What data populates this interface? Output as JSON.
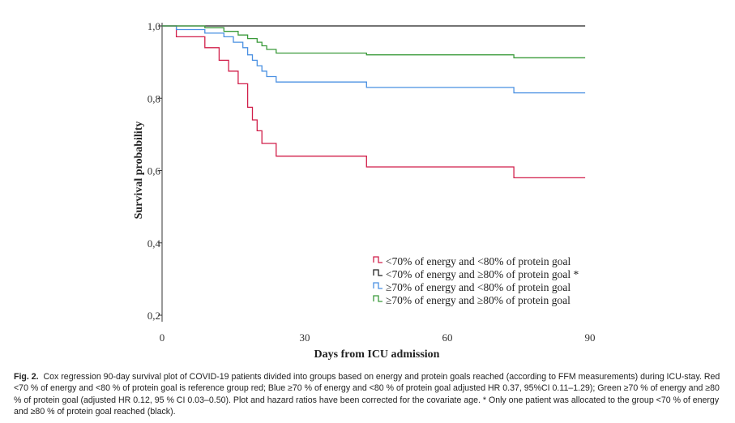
{
  "chart_data": {
    "type": "line",
    "subtype": "kaplan-meier-step",
    "xlabel": "Days from ICU admission",
    "ylabel": "Survival probability",
    "xlim": [
      0,
      90
    ],
    "ylim": [
      0.2,
      1.0
    ],
    "xticks": [
      {
        "value": 0,
        "label": "0"
      },
      {
        "value": 30,
        "label": "30"
      },
      {
        "value": 60,
        "label": "60"
      },
      {
        "value": 90,
        "label": "90"
      }
    ],
    "yticks": [
      {
        "value": 0.2,
        "label": "0,2"
      },
      {
        "value": 0.4,
        "label": "0,4"
      },
      {
        "value": 0.6,
        "label": "0,6"
      },
      {
        "value": 0.8,
        "label": "0,8"
      },
      {
        "value": 1.0,
        "label": "1,0"
      }
    ],
    "grid": false,
    "legend_position": "bottom-right",
    "series": [
      {
        "name": "<70% of energy and <80% of protein goal",
        "color": "#d11f4a",
        "points": [
          [
            0,
            1.0
          ],
          [
            3,
            1.0
          ],
          [
            3,
            0.97
          ],
          [
            9,
            0.97
          ],
          [
            9,
            0.94
          ],
          [
            12,
            0.94
          ],
          [
            12,
            0.905
          ],
          [
            14,
            0.905
          ],
          [
            14,
            0.875
          ],
          [
            16,
            0.875
          ],
          [
            16,
            0.84
          ],
          [
            18,
            0.84
          ],
          [
            18,
            0.775
          ],
          [
            19,
            0.775
          ],
          [
            19,
            0.74
          ],
          [
            20,
            0.74
          ],
          [
            20,
            0.71
          ],
          [
            21,
            0.71
          ],
          [
            21,
            0.675
          ],
          [
            24,
            0.675
          ],
          [
            24,
            0.64
          ],
          [
            43,
            0.64
          ],
          [
            43,
            0.61
          ],
          [
            74,
            0.61
          ],
          [
            74,
            0.58
          ],
          [
            89,
            0.58
          ]
        ]
      },
      {
        "name": "<70% of energy and ≥80% of protein goal *",
        "color": "#222222",
        "points": [
          [
            0,
            1.0
          ],
          [
            89,
            1.0
          ]
        ]
      },
      {
        "name": "≥70% of energy and <80% of protein goal",
        "color": "#4a90e2",
        "points": [
          [
            0,
            1.0
          ],
          [
            3,
            1.0
          ],
          [
            3,
            0.99
          ],
          [
            9,
            0.99
          ],
          [
            9,
            0.98
          ],
          [
            13,
            0.98
          ],
          [
            13,
            0.97
          ],
          [
            15,
            0.97
          ],
          [
            15,
            0.955
          ],
          [
            17,
            0.955
          ],
          [
            17,
            0.94
          ],
          [
            18,
            0.94
          ],
          [
            18,
            0.92
          ],
          [
            19,
            0.92
          ],
          [
            19,
            0.905
          ],
          [
            20,
            0.905
          ],
          [
            20,
            0.89
          ],
          [
            21,
            0.89
          ],
          [
            21,
            0.875
          ],
          [
            22,
            0.875
          ],
          [
            22,
            0.86
          ],
          [
            24,
            0.86
          ],
          [
            24,
            0.845
          ],
          [
            43,
            0.845
          ],
          [
            43,
            0.83
          ],
          [
            74,
            0.83
          ],
          [
            74,
            0.815
          ],
          [
            89,
            0.815
          ]
        ]
      },
      {
        "name": "≥70% of energy and ≥80% of protein goal",
        "color": "#3a9a3a",
        "points": [
          [
            0,
            1.0
          ],
          [
            9,
            1.0
          ],
          [
            9,
            0.995
          ],
          [
            13,
            0.995
          ],
          [
            13,
            0.985
          ],
          [
            16,
            0.985
          ],
          [
            16,
            0.975
          ],
          [
            18,
            0.975
          ],
          [
            18,
            0.965
          ],
          [
            20,
            0.965
          ],
          [
            20,
            0.955
          ],
          [
            21,
            0.955
          ],
          [
            21,
            0.945
          ],
          [
            22,
            0.945
          ],
          [
            22,
            0.935
          ],
          [
            24,
            0.935
          ],
          [
            24,
            0.925
          ],
          [
            43,
            0.925
          ],
          [
            43,
            0.92
          ],
          [
            74,
            0.92
          ],
          [
            74,
            0.912
          ],
          [
            89,
            0.912
          ]
        ]
      }
    ]
  },
  "caption": {
    "label": "Fig. 2.",
    "text": "Cox regression 90-day survival plot of COVID-19 patients divided into groups based on energy and protein goals reached (according to FFM measurements) during ICU-stay. Red <70 % of energy and <80 % of protein goal is reference group red; Blue ≥70 % of energy and <80 % of protein goal adjusted HR 0.37, 95%CI 0.11–1.29); Green ≥70 % of energy and ≥80 % of protein goal (adjusted HR 0.12, 95 % CI 0.03–0.50). Plot and hazard ratios have been corrected for the covariate age. * Only one patient was allocated to the group <70 % of energy and ≥80 % of protein goal reached (black)."
  }
}
